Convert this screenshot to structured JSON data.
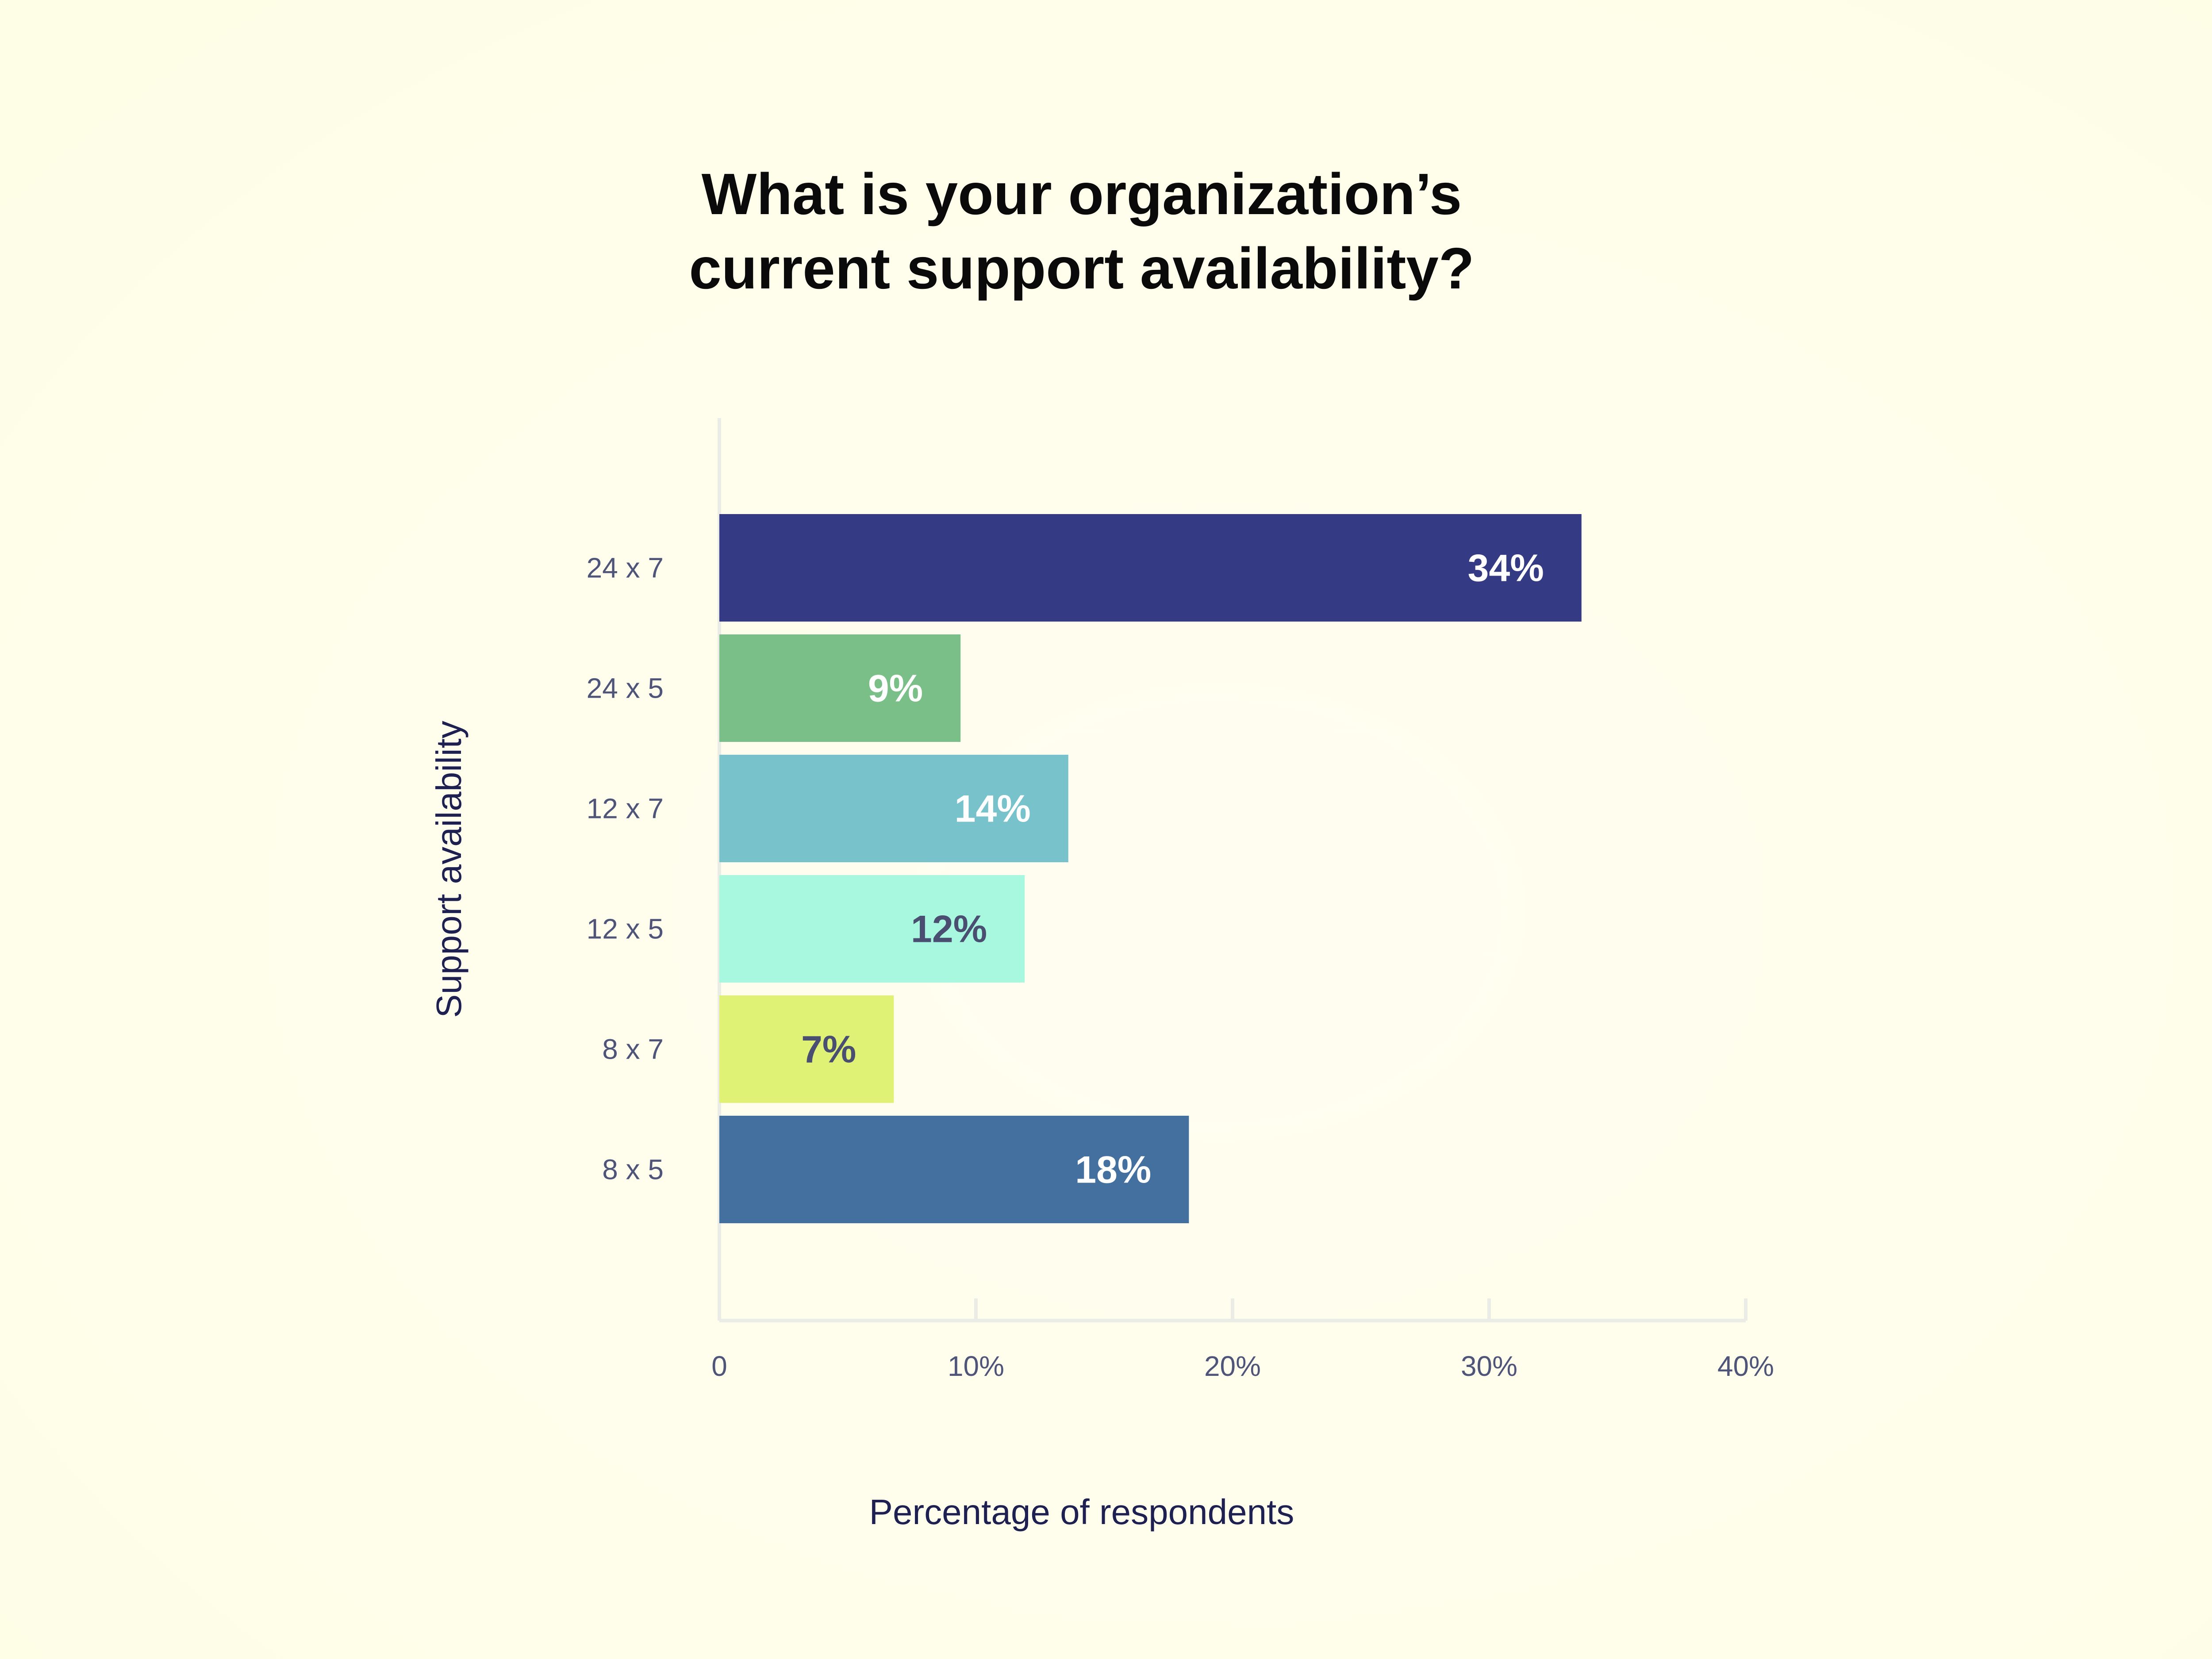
{
  "chart_data": {
    "type": "bar",
    "orientation": "horizontal",
    "title_lines": [
      "What is your organization’s",
      "current support availability?"
    ],
    "xlabel": "Percentage of respondents",
    "ylabel": "Support availability",
    "xlim": [
      0,
      40
    ],
    "x_ticks": [
      {
        "value": 0,
        "label": "0"
      },
      {
        "value": 10,
        "label": "10%"
      },
      {
        "value": 20,
        "label": "20%"
      },
      {
        "value": 30,
        "label": "30%"
      },
      {
        "value": 40,
        "label": "40%"
      }
    ],
    "grid": false,
    "legend": "none",
    "categories": [
      "24 x 7",
      "24 x 5",
      "12 x 7",
      "12 x 5",
      "8 x 7",
      "8 x 5"
    ],
    "values": [
      33.6,
      9.4,
      13.6,
      11.9,
      6.8,
      18.3
    ],
    "data_labels": [
      "34%",
      "9%",
      "14%",
      "12%",
      "7%",
      "18%"
    ],
    "colors": [
      "#343b84",
      "#79bf87",
      "#77c2cb",
      "#a8f7df",
      "#e0f275",
      "#44709f"
    ],
    "label_colors": [
      "#ffffff",
      "#ffffff",
      "#ffffff",
      "#4a4f72",
      "#4a4f72",
      "#ffffff"
    ]
  }
}
